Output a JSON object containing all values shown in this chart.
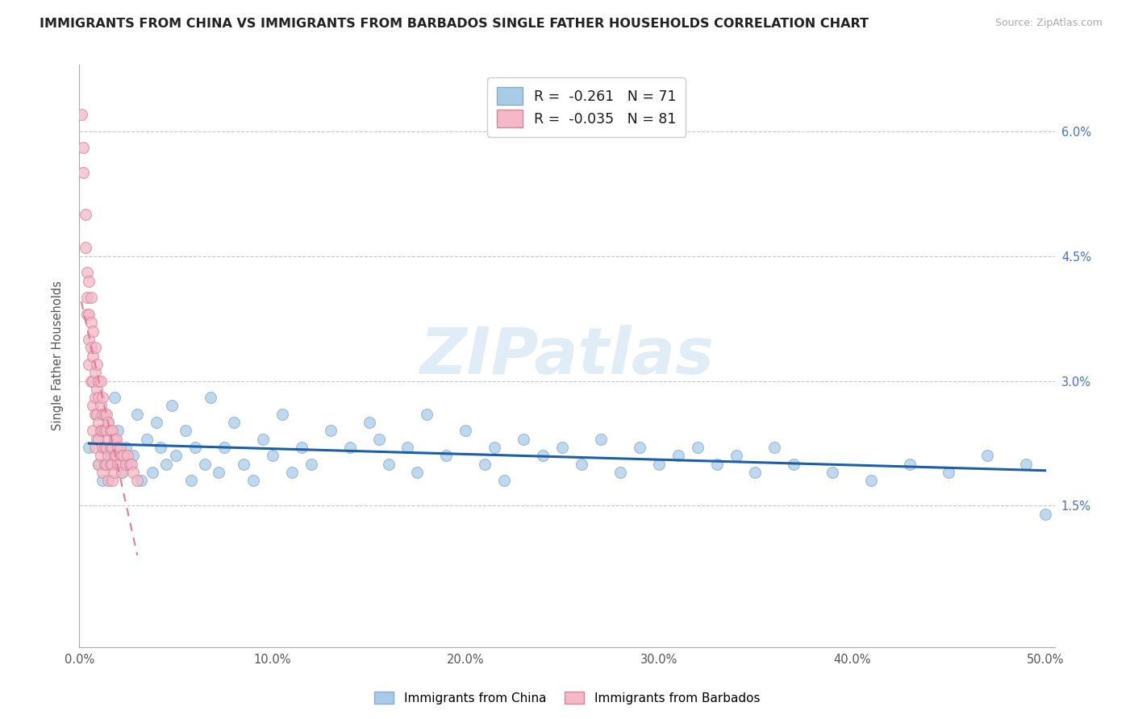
{
  "title": "IMMIGRANTS FROM CHINA VS IMMIGRANTS FROM BARBADOS SINGLE FATHER HOUSEHOLDS CORRELATION CHART",
  "source": "Source: ZipAtlas.com",
  "ylabel": "Single Father Households",
  "xlim": [
    0.0,
    0.505
  ],
  "ylim": [
    -0.002,
    0.068
  ],
  "ytick_labels": [
    "",
    "1.5%",
    "3.0%",
    "4.5%",
    "6.0%"
  ],
  "ytick_vals": [
    0.0,
    0.015,
    0.03,
    0.045,
    0.06
  ],
  "xtick_labels": [
    "0.0%",
    "10.0%",
    "20.0%",
    "30.0%",
    "40.0%",
    "50.0%"
  ],
  "xtick_vals": [
    0.0,
    0.1,
    0.2,
    0.3,
    0.4,
    0.5
  ],
  "legend_china": "R =  -0.261   N = 71",
  "legend_barbados": "R =  -0.035   N = 81",
  "china_color": "#a8cce8",
  "barbados_color": "#f4b8c8",
  "china_line_color": "#1a5fa8",
  "barbados_line_color": "#e87898",
  "watermark": "ZIPatlas",
  "china_scatter_x": [
    0.005,
    0.01,
    0.012,
    0.015,
    0.016,
    0.018,
    0.02,
    0.022,
    0.024,
    0.025,
    0.028,
    0.03,
    0.032,
    0.035,
    0.038,
    0.04,
    0.042,
    0.045,
    0.048,
    0.05,
    0.055,
    0.058,
    0.06,
    0.065,
    0.068,
    0.072,
    0.075,
    0.08,
    0.085,
    0.09,
    0.095,
    0.1,
    0.105,
    0.11,
    0.115,
    0.12,
    0.13,
    0.14,
    0.15,
    0.155,
    0.16,
    0.17,
    0.175,
    0.18,
    0.19,
    0.2,
    0.21,
    0.215,
    0.22,
    0.23,
    0.24,
    0.25,
    0.26,
    0.27,
    0.28,
    0.29,
    0.3,
    0.31,
    0.32,
    0.33,
    0.34,
    0.35,
    0.36,
    0.37,
    0.39,
    0.41,
    0.43,
    0.45,
    0.47,
    0.49,
    0.5
  ],
  "china_scatter_y": [
    0.022,
    0.02,
    0.018,
    0.025,
    0.021,
    0.028,
    0.024,
    0.019,
    0.022,
    0.02,
    0.021,
    0.026,
    0.018,
    0.023,
    0.019,
    0.025,
    0.022,
    0.02,
    0.027,
    0.021,
    0.024,
    0.018,
    0.022,
    0.02,
    0.028,
    0.019,
    0.022,
    0.025,
    0.02,
    0.018,
    0.023,
    0.021,
    0.026,
    0.019,
    0.022,
    0.02,
    0.024,
    0.022,
    0.025,
    0.023,
    0.02,
    0.022,
    0.019,
    0.026,
    0.021,
    0.024,
    0.02,
    0.022,
    0.018,
    0.023,
    0.021,
    0.022,
    0.02,
    0.023,
    0.019,
    0.022,
    0.02,
    0.021,
    0.022,
    0.02,
    0.021,
    0.019,
    0.022,
    0.02,
    0.019,
    0.018,
    0.02,
    0.019,
    0.021,
    0.02,
    0.014
  ],
  "barbados_scatter_x": [
    0.001,
    0.002,
    0.002,
    0.003,
    0.003,
    0.004,
    0.004,
    0.004,
    0.005,
    0.005,
    0.005,
    0.005,
    0.006,
    0.006,
    0.006,
    0.006,
    0.007,
    0.007,
    0.007,
    0.007,
    0.007,
    0.008,
    0.008,
    0.008,
    0.008,
    0.008,
    0.009,
    0.009,
    0.009,
    0.009,
    0.01,
    0.01,
    0.01,
    0.01,
    0.01,
    0.011,
    0.011,
    0.011,
    0.011,
    0.012,
    0.012,
    0.012,
    0.012,
    0.012,
    0.013,
    0.013,
    0.013,
    0.013,
    0.014,
    0.014,
    0.014,
    0.014,
    0.015,
    0.015,
    0.015,
    0.015,
    0.016,
    0.016,
    0.016,
    0.017,
    0.017,
    0.017,
    0.017,
    0.018,
    0.018,
    0.018,
    0.019,
    0.019,
    0.02,
    0.02,
    0.021,
    0.021,
    0.022,
    0.022,
    0.023,
    0.024,
    0.025,
    0.026,
    0.027,
    0.028,
    0.03
  ],
  "barbados_scatter_y": [
    0.062,
    0.058,
    0.055,
    0.05,
    0.046,
    0.043,
    0.04,
    0.038,
    0.042,
    0.038,
    0.035,
    0.032,
    0.04,
    0.037,
    0.034,
    0.03,
    0.036,
    0.033,
    0.03,
    0.027,
    0.024,
    0.034,
    0.031,
    0.028,
    0.026,
    0.022,
    0.032,
    0.029,
    0.026,
    0.023,
    0.03,
    0.028,
    0.025,
    0.023,
    0.02,
    0.03,
    0.027,
    0.024,
    0.021,
    0.028,
    0.026,
    0.024,
    0.022,
    0.019,
    0.026,
    0.024,
    0.022,
    0.02,
    0.026,
    0.024,
    0.022,
    0.02,
    0.025,
    0.023,
    0.021,
    0.018,
    0.024,
    0.022,
    0.02,
    0.024,
    0.022,
    0.02,
    0.018,
    0.023,
    0.021,
    0.019,
    0.023,
    0.021,
    0.022,
    0.02,
    0.022,
    0.02,
    0.021,
    0.019,
    0.021,
    0.02,
    0.021,
    0.02,
    0.02,
    0.019,
    0.018
  ]
}
